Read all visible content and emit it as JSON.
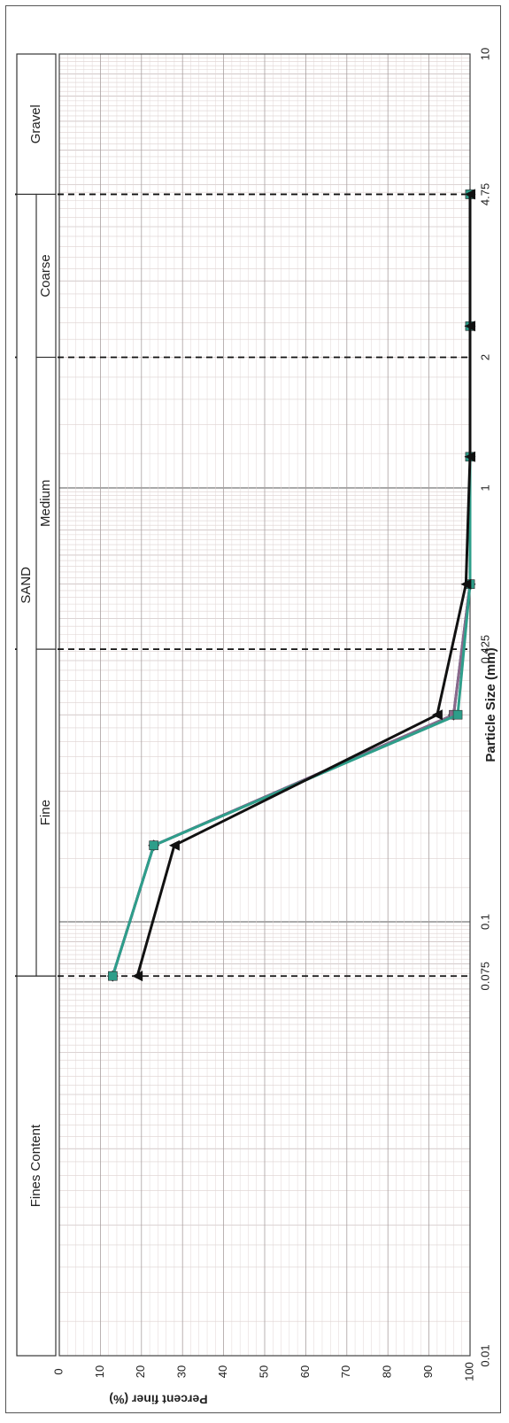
{
  "chart_data": {
    "type": "line",
    "title": "",
    "xlabel": "Particle Size (mm)",
    "ylabel": "Percent finer (%)",
    "x_scale": "log",
    "xlim": [
      0.01,
      10
    ],
    "ylim": [
      0,
      100
    ],
    "grid": true,
    "x_ticks": [
      "0.01",
      "0.075",
      "0.1",
      "0.425",
      "1",
      "2",
      "4.75",
      "10"
    ],
    "y_ticks": [
      "0",
      "10",
      "20",
      "30",
      "40",
      "50",
      "60",
      "70",
      "80",
      "90",
      "100"
    ],
    "boundaries": [
      0.075,
      0.425,
      2,
      4.75
    ],
    "zones": [
      {
        "label": "Fines Content",
        "from": 0.01,
        "to": 0.075
      },
      {
        "label": "Fine",
        "from": 0.075,
        "to": 0.425
      },
      {
        "label": "Medium",
        "from": 0.425,
        "to": 2
      },
      {
        "label": "Coarse",
        "from": 2,
        "to": 4.75
      },
      {
        "label": "Gravel",
        "from": 4.75,
        "to": 10
      }
    ],
    "group_label": {
      "label": "SAND",
      "from": 0.075,
      "to": 4.75
    },
    "series": [
      {
        "color": "#1f2a7a",
        "marker": "diamond",
        "x": [
          0.075,
          0.15,
          0.3,
          0.6,
          1.18,
          2.36,
          4.75
        ],
        "y": [
          13,
          23,
          96,
          100,
          100,
          100,
          100
        ]
      },
      {
        "color": "#8a6a8a",
        "marker": "square",
        "x": [
          0.075,
          0.15,
          0.3,
          0.6,
          1.18,
          2.36,
          4.75
        ],
        "y": [
          13,
          23,
          96,
          100,
          100,
          100,
          100
        ]
      },
      {
        "color": "#2e9e8a",
        "marker": "square",
        "x": [
          0.075,
          0.15,
          0.3,
          0.6,
          1.18,
          2.36,
          4.75
        ],
        "y": [
          13,
          23,
          97,
          100,
          100,
          100,
          100
        ]
      },
      {
        "color": "#111111",
        "marker": "triangle",
        "x": [
          0.075,
          0.15,
          0.3,
          0.6,
          1.18,
          2.36,
          4.75
        ],
        "y": [
          19,
          28,
          92,
          99,
          100,
          100,
          100
        ]
      }
    ]
  }
}
